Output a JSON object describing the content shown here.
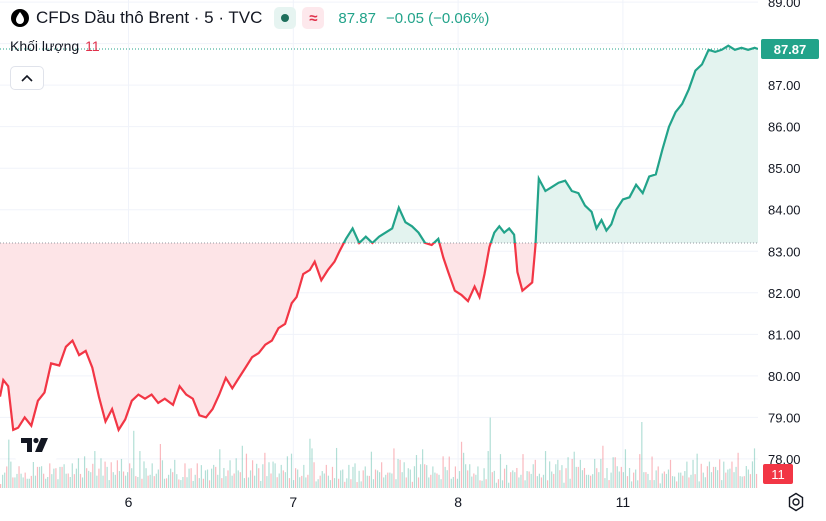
{
  "header": {
    "symbol_icon": "oil-drop-icon",
    "title": "CFDs Dầu thô Brent · 5 · TVC",
    "market_status_icon": "market-open-dot-icon",
    "indicator_icon": "wave-icon",
    "last_price": "87.87",
    "change": "−0.05 (−0.06%)"
  },
  "volume_legend": {
    "label": "Khối lượng",
    "value": "11"
  },
  "collapse_icon": "chevron-up-icon",
  "logo_icon": "tradingview-logo-icon",
  "settings_icon": "gear-icon",
  "colors": {
    "up": "#22a38a",
    "down": "#f23645",
    "up_fill": "#e3f3ef",
    "down_fill": "#fde4e7",
    "grid": "#f0f3fa",
    "axis_text": "#131722"
  },
  "chart_data": {
    "type": "line",
    "title": "CFDs Dầu thô Brent · 5 · TVC",
    "x_tick_labels": [
      "6",
      "7",
      "8",
      "11"
    ],
    "y_tick_labels": [
      "78.00",
      "79.00",
      "80.00",
      "81.00",
      "82.00",
      "83.00",
      "84.00",
      "85.00",
      "86.00",
      "87.00",
      "88.00",
      "89.00"
    ],
    "ylim": [
      77.3,
      89.05
    ],
    "baseline": 83.2,
    "last_price": 87.87,
    "volume_last": 11,
    "series": [
      {
        "name": "Price",
        "points": [
          [
            0.0,
            79.5
          ],
          [
            0.02,
            79.9
          ],
          [
            0.05,
            79.75
          ],
          [
            0.08,
            78.7
          ],
          [
            0.11,
            78.75
          ],
          [
            0.15,
            79.0
          ],
          [
            0.19,
            78.8
          ],
          [
            0.23,
            79.4
          ],
          [
            0.27,
            79.6
          ],
          [
            0.31,
            80.3
          ],
          [
            0.36,
            80.25
          ],
          [
            0.4,
            80.7
          ],
          [
            0.44,
            80.85
          ],
          [
            0.48,
            80.5
          ],
          [
            0.52,
            80.6
          ],
          [
            0.56,
            80.2
          ],
          [
            0.6,
            79.5
          ],
          [
            0.64,
            78.9
          ],
          [
            0.68,
            79.2
          ],
          [
            0.72,
            78.7
          ],
          [
            0.76,
            78.95
          ],
          [
            0.8,
            79.4
          ],
          [
            0.84,
            79.55
          ],
          [
            0.88,
            79.45
          ],
          [
            0.92,
            79.55
          ],
          [
            0.96,
            79.35
          ],
          [
            1.0,
            79.45
          ],
          [
            1.05,
            79.3
          ],
          [
            1.09,
            79.75
          ],
          [
            1.13,
            79.55
          ],
          [
            1.17,
            79.45
          ],
          [
            1.21,
            79.05
          ],
          [
            1.25,
            79.0
          ],
          [
            1.29,
            79.2
          ],
          [
            1.33,
            79.55
          ],
          [
            1.37,
            79.95
          ],
          [
            1.41,
            79.7
          ],
          [
            1.45,
            79.95
          ],
          [
            1.49,
            80.2
          ],
          [
            1.53,
            80.45
          ],
          [
            1.57,
            80.55
          ],
          [
            1.61,
            80.75
          ],
          [
            1.65,
            80.85
          ],
          [
            1.69,
            81.15
          ],
          [
            1.73,
            81.25
          ],
          [
            1.77,
            81.75
          ],
          [
            1.8,
            81.9
          ],
          [
            1.84,
            82.45
          ],
          [
            1.88,
            82.55
          ],
          [
            1.91,
            82.75
          ],
          [
            1.95,
            82.3
          ],
          [
            1.99,
            82.55
          ],
          [
            2.03,
            82.75
          ],
          [
            2.06,
            83.0
          ],
          [
            2.1,
            83.3
          ],
          [
            2.14,
            83.55
          ],
          [
            2.18,
            83.2
          ],
          [
            2.22,
            83.35
          ],
          [
            2.26,
            83.2
          ],
          [
            2.3,
            83.35
          ],
          [
            2.34,
            83.45
          ],
          [
            2.38,
            83.55
          ],
          [
            2.42,
            84.05
          ],
          [
            2.46,
            83.7
          ],
          [
            2.5,
            83.6
          ],
          [
            2.54,
            83.45
          ],
          [
            2.58,
            83.2
          ],
          [
            2.62,
            83.15
          ],
          [
            2.66,
            83.3
          ],
          [
            2.69,
            82.85
          ],
          [
            2.72,
            82.5
          ],
          [
            2.76,
            82.05
          ],
          [
            2.8,
            81.95
          ],
          [
            2.84,
            81.8
          ],
          [
            2.88,
            82.15
          ],
          [
            2.91,
            81.9
          ],
          [
            2.94,
            82.45
          ],
          [
            2.97,
            83.1
          ],
          [
            3.0,
            83.45
          ],
          [
            3.03,
            83.6
          ],
          [
            3.06,
            83.45
          ],
          [
            3.09,
            83.55
          ],
          [
            3.12,
            83.4
          ],
          [
            3.14,
            82.5
          ],
          [
            3.17,
            82.05
          ],
          [
            3.2,
            82.15
          ],
          [
            3.23,
            82.25
          ],
          [
            3.25,
            83.15
          ],
          [
            3.27,
            84.75
          ],
          [
            3.31,
            84.45
          ],
          [
            3.35,
            84.55
          ],
          [
            3.39,
            84.65
          ],
          [
            3.43,
            84.7
          ],
          [
            3.47,
            84.45
          ],
          [
            3.51,
            84.4
          ],
          [
            3.55,
            84.1
          ],
          [
            3.59,
            83.95
          ],
          [
            3.62,
            83.55
          ],
          [
            3.65,
            83.75
          ],
          [
            3.68,
            83.5
          ],
          [
            3.71,
            83.65
          ],
          [
            3.74,
            84.0
          ],
          [
            3.78,
            84.25
          ],
          [
            3.82,
            84.3
          ],
          [
            3.86,
            84.6
          ],
          [
            3.9,
            84.4
          ],
          [
            3.94,
            84.8
          ],
          [
            3.98,
            84.85
          ],
          [
            4.02,
            85.45
          ],
          [
            4.06,
            86.0
          ],
          [
            4.1,
            86.35
          ],
          [
            4.14,
            86.55
          ],
          [
            4.18,
            86.9
          ],
          [
            4.22,
            87.35
          ],
          [
            4.26,
            87.5
          ],
          [
            4.3,
            87.85
          ],
          [
            4.34,
            87.8
          ],
          [
            4.38,
            87.85
          ],
          [
            4.42,
            87.95
          ],
          [
            4.46,
            87.85
          ],
          [
            4.5,
            87.9
          ],
          [
            4.54,
            87.85
          ],
          [
            4.58,
            87.9
          ],
          [
            4.6,
            87.87
          ]
        ]
      },
      {
        "name": "Volume",
        "values_sampled": [
          3,
          5,
          8,
          6,
          4,
          7,
          9,
          5,
          6,
          12,
          8,
          5,
          4,
          6,
          10,
          7,
          5,
          6,
          9,
          8,
          11,
          7,
          6,
          5,
          14,
          9,
          8,
          7,
          6,
          10,
          12,
          8,
          20,
          11,
          9,
          8,
          7,
          6,
          5,
          7,
          9,
          12,
          8,
          6,
          5,
          4,
          11
        ]
      }
    ]
  }
}
